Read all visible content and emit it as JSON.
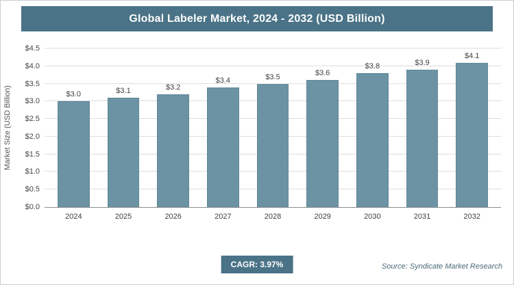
{
  "title": "Global Labeler Market, 2024 - 2032 (USD Billion)",
  "chart_data": {
    "type": "bar",
    "categories": [
      "2024",
      "2025",
      "2026",
      "2027",
      "2028",
      "2029",
      "2030",
      "2031",
      "2032"
    ],
    "values": [
      3.0,
      3.1,
      3.2,
      3.4,
      3.5,
      3.6,
      3.8,
      3.9,
      4.1
    ],
    "bar_labels": [
      "$3.0",
      "$3.1",
      "$3.2",
      "$3.4",
      "$3.5",
      "$3.6",
      "$3.8",
      "$3.9",
      "$4.1"
    ],
    "title": "Global Labeler Market, 2024 - 2032 (USD Billion)",
    "xlabel": "",
    "ylabel": "Market Size (USD Billion)",
    "ylim": [
      0,
      4.5
    ],
    "ytick_values": [
      0,
      0.5,
      1.0,
      1.5,
      2.0,
      2.5,
      3.0,
      3.5,
      4.0,
      4.5
    ],
    "ytick_labels": [
      "$0.0",
      "$0.5",
      "$1.0",
      "$1.5",
      "$2.0",
      "$2.5",
      "$3.0",
      "$3.5",
      "$4.0",
      "$4.5"
    ],
    "grid": true,
    "legend": "none"
  },
  "footer": {
    "cagr_label": "CAGR: 3.97%",
    "source": "Source: Syndicate Market Research"
  },
  "colors": {
    "header_bg": "#4a7387",
    "bar_fill": "#6b93a4",
    "gridline": "#dddddd",
    "page_border": "#cccccc"
  }
}
